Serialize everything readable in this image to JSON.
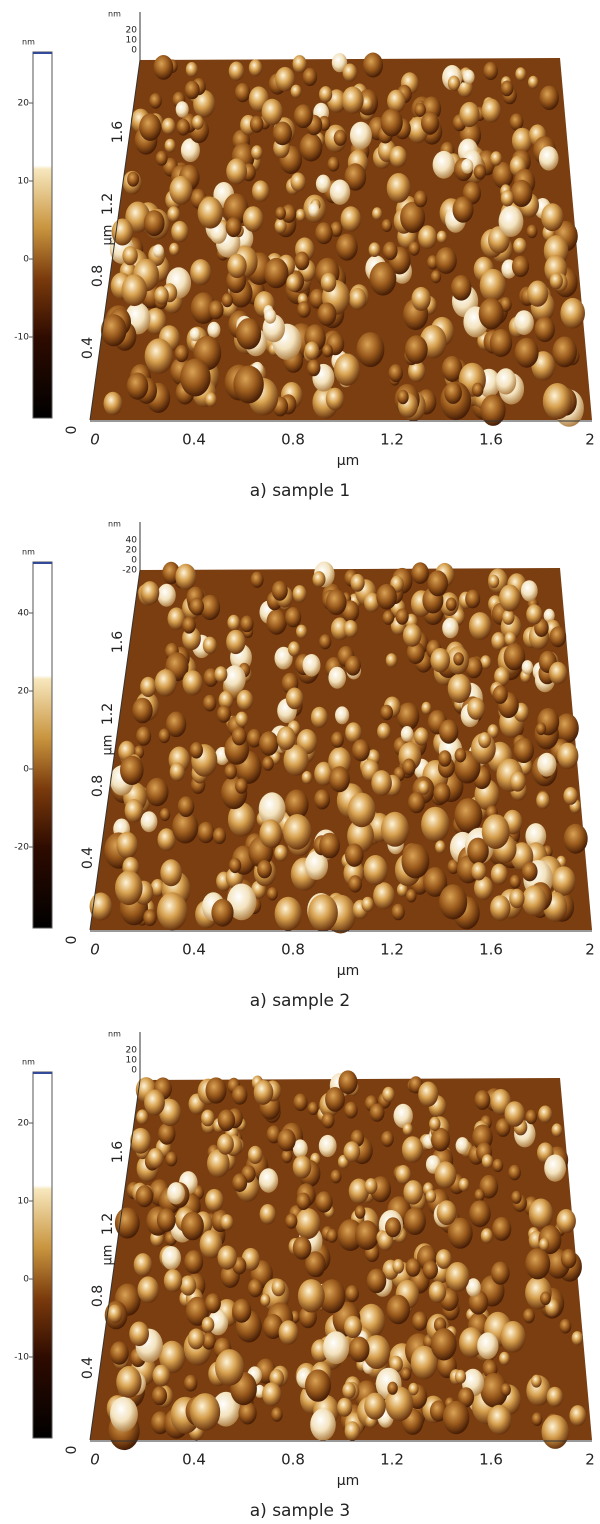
{
  "panels": [
    {
      "colorbar": {
        "unit": "nm",
        "ticks": [
          "20",
          "10",
          "0",
          "-10"
        ]
      },
      "z_axis": {
        "unit": "nm",
        "ticks": [
          "20",
          "10",
          "0"
        ]
      },
      "y_axis": {
        "unit": "µm",
        "ticks": [
          "0",
          "0.4",
          "0.8",
          "1.2",
          "1.6"
        ]
      },
      "x_axis": {
        "unit": "µm",
        "ticks": [
          "0",
          "0.4",
          "0.8",
          "1.2",
          "1.6",
          "2"
        ]
      },
      "caption": "a) sample 1"
    },
    {
      "colorbar": {
        "unit": "nm",
        "ticks": [
          "40",
          "20",
          "0",
          "-20"
        ]
      },
      "z_axis": {
        "unit": "nm",
        "ticks": [
          "40",
          "20",
          "0",
          "-20"
        ]
      },
      "y_axis": {
        "unit": "µm",
        "ticks": [
          "0",
          "0.4",
          "0.8",
          "1.2",
          "1.6"
        ]
      },
      "x_axis": {
        "unit": "µm",
        "ticks": [
          "0",
          "0.4",
          "0.8",
          "1.2",
          "1.6",
          "2"
        ]
      },
      "caption": "a) sample 2"
    },
    {
      "colorbar": {
        "unit": "nm",
        "ticks": [
          "20",
          "10",
          "0",
          "-10"
        ]
      },
      "z_axis": {
        "unit": "nm",
        "ticks": [
          "20",
          "10",
          "0"
        ]
      },
      "y_axis": {
        "unit": "µm",
        "ticks": [
          "0",
          "0.4",
          "0.8",
          "1.2",
          "1.6"
        ]
      },
      "x_axis": {
        "unit": "µm",
        "ticks": [
          "0",
          "0.4",
          "0.8",
          "1.2",
          "1.6",
          "2"
        ]
      },
      "caption": "a) sample 3"
    }
  ]
}
